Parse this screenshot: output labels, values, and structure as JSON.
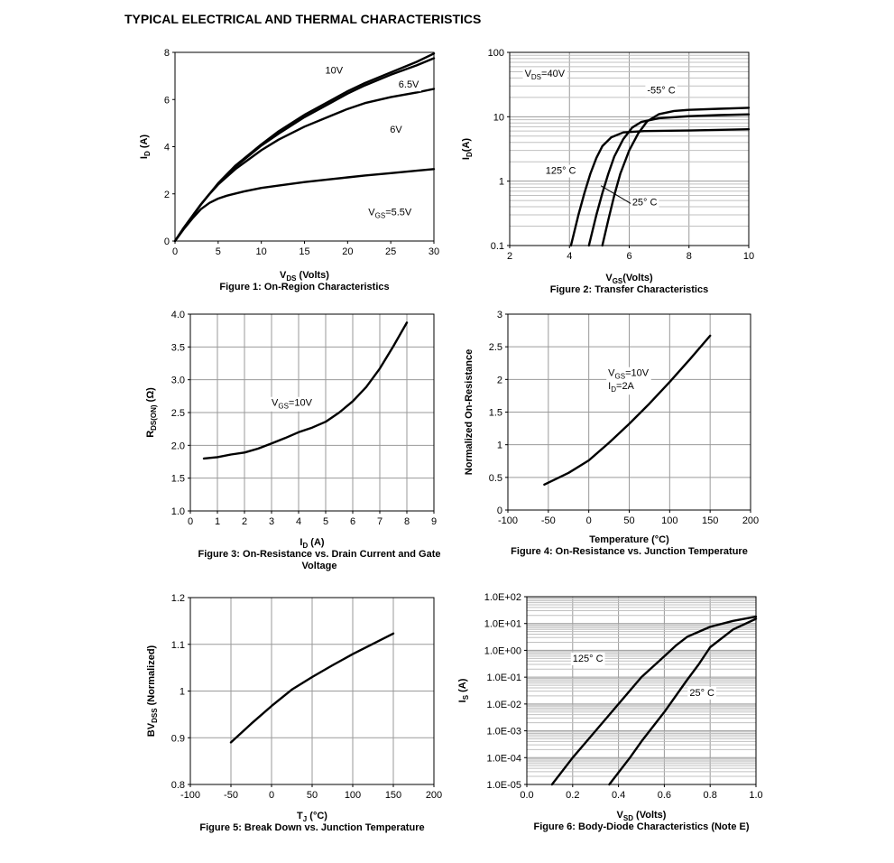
{
  "heading": "TYPICAL ELECTRICAL AND THERMAL CHARACTERISTICS",
  "chart_data": [
    {
      "id": "fig1",
      "type": "line",
      "caption": "Figure 1: On-Region Characteristics",
      "xlabel": {
        "base": "V",
        "sub": "DS",
        "rest": " (Volts)"
      },
      "ylabel": {
        "base": "I",
        "sub": "D",
        "rest": " (A)"
      },
      "xlim": [
        0,
        30
      ],
      "ylim": [
        0,
        8
      ],
      "xticks": [
        0,
        5,
        10,
        15,
        20,
        25,
        30
      ],
      "yticks": [
        0,
        2,
        4,
        6,
        8
      ],
      "grid": false,
      "series": [
        {
          "name": "10V",
          "x": [
            0,
            1,
            2,
            3,
            4,
            5,
            7,
            10,
            12,
            15,
            18,
            20,
            22,
            25,
            28,
            30
          ],
          "y": [
            0,
            0.55,
            1.05,
            1.55,
            2.0,
            2.45,
            3.2,
            4.1,
            4.65,
            5.35,
            5.95,
            6.35,
            6.7,
            7.15,
            7.6,
            7.95
          ]
        },
        {
          "name": "6.5V",
          "x": [
            0,
            1,
            2,
            3,
            4,
            5,
            7,
            10,
            12,
            15,
            18,
            20,
            22,
            25,
            28,
            30
          ],
          "y": [
            0,
            0.55,
            1.05,
            1.55,
            2.0,
            2.4,
            3.15,
            4.05,
            4.55,
            5.25,
            5.85,
            6.25,
            6.6,
            7.05,
            7.45,
            7.75
          ]
        },
        {
          "name": "6V",
          "x": [
            0,
            1,
            2,
            3,
            4,
            5,
            7,
            10,
            12,
            15,
            18,
            20,
            22,
            25,
            28,
            30
          ],
          "y": [
            0,
            0.55,
            1.05,
            1.55,
            2.0,
            2.4,
            3.05,
            3.85,
            4.3,
            4.85,
            5.3,
            5.6,
            5.85,
            6.1,
            6.3,
            6.45
          ]
        },
        {
          "name": "5.5V",
          "x": [
            0,
            1,
            2,
            3,
            4,
            5,
            6,
            8,
            10,
            12,
            15,
            18,
            20,
            22,
            25,
            28,
            30
          ],
          "y": [
            0,
            0.5,
            0.95,
            1.35,
            1.62,
            1.8,
            1.92,
            2.1,
            2.25,
            2.35,
            2.5,
            2.62,
            2.7,
            2.78,
            2.88,
            2.98,
            3.05
          ]
        }
      ],
      "annotations": [
        {
          "text": "10V",
          "x": 17.4,
          "y": 7.1
        },
        {
          "text": "6.5V",
          "x": 25.9,
          "y": 6.5
        },
        {
          "text": "6V",
          "x": 24.9,
          "y": 4.6
        },
        {
          "text": "V",
          "sub": "GS",
          "rest": "=5.5V",
          "x": 22.4,
          "y": 1.1
        }
      ]
    },
    {
      "id": "fig2",
      "type": "line",
      "caption": "Figure 2: Transfer Characteristics",
      "xlabel": {
        "base": "V",
        "sub": "GS",
        "rest": "(Volts)"
      },
      "ylabel": {
        "base": "I",
        "sub": "D",
        "rest": "(A)"
      },
      "xlim": [
        2,
        10
      ],
      "ylim": [
        0.1,
        100
      ],
      "yscale": "log",
      "xticks": [
        2,
        4,
        6,
        8,
        10
      ],
      "yticks": [
        0.1,
        1,
        10,
        100
      ],
      "ytick_labels": [
        "0.1",
        "1",
        "10",
        "100"
      ],
      "grid": true,
      "series": [
        {
          "name": "-55° C",
          "x": [
            5.1,
            5.3,
            5.5,
            5.7,
            6.0,
            6.3,
            6.6,
            7.0,
            7.5,
            8.0,
            9.0,
            10.0
          ],
          "y": [
            0.1,
            0.25,
            0.6,
            1.3,
            3.0,
            5.5,
            8.5,
            11.0,
            12.3,
            12.8,
            13.3,
            13.8
          ]
        },
        {
          "name": "25° C",
          "x": [
            4.65,
            4.9,
            5.1,
            5.3,
            5.5,
            5.8,
            6.1,
            6.4,
            7.0,
            8.0,
            9.0,
            10.0
          ],
          "y": [
            0.1,
            0.3,
            0.65,
            1.3,
            2.4,
            4.5,
            6.8,
            8.3,
            9.5,
            10.2,
            10.6,
            10.9
          ]
        },
        {
          "name": "125° C",
          "x": [
            4.05,
            4.3,
            4.5,
            4.7,
            4.9,
            5.1,
            5.4,
            5.8,
            6.5,
            8.0,
            10.0
          ],
          "y": [
            0.1,
            0.3,
            0.65,
            1.3,
            2.3,
            3.5,
            4.8,
            5.7,
            6.0,
            6.1,
            6.4
          ]
        }
      ],
      "annotations": [
        {
          "text": "V",
          "sub": "DS",
          "rest": "=40V",
          "x": 2.5,
          "y": 42
        },
        {
          "text": "-55° C",
          "x": 6.6,
          "y": 23
        },
        {
          "text": "125° C",
          "x": 3.2,
          "y": 1.3
        },
        {
          "text": "25° C",
          "x": 6.1,
          "y": 0.42
        }
      ]
    },
    {
      "id": "fig3",
      "type": "line",
      "caption": [
        "Figure 3: On-Resistance vs. Drain Current and Gate",
        "Voltage"
      ],
      "xlabel": {
        "base": "I",
        "sub": "D",
        "rest": " (A)"
      },
      "ylabel": {
        "base": "R",
        "sub": "DS(ON)",
        "rest": " (Ω)"
      },
      "xlim": [
        0,
        9
      ],
      "ylim": [
        1.0,
        4.0
      ],
      "xticks": [
        0,
        1,
        2,
        3,
        4,
        5,
        6,
        7,
        8,
        9
      ],
      "yticks": [
        1.0,
        1.5,
        2.0,
        2.5,
        3.0,
        3.5,
        4.0
      ],
      "ytick_labels": [
        "1.0",
        "1.5",
        "2.0",
        "2.5",
        "3.0",
        "3.5",
        "4.0"
      ],
      "grid": true,
      "series": [
        {
          "name": "V_GS=10V",
          "x": [
            0.5,
            1.0,
            1.5,
            2.0,
            2.5,
            3.0,
            3.5,
            4.0,
            4.5,
            5.0,
            5.5,
            6.0,
            6.5,
            7.0,
            7.5,
            8.0
          ],
          "y": [
            1.8,
            1.82,
            1.86,
            1.89,
            1.95,
            2.03,
            2.11,
            2.2,
            2.27,
            2.36,
            2.5,
            2.67,
            2.89,
            3.17,
            3.51,
            3.87
          ]
        }
      ],
      "annotations": [
        {
          "text": "V",
          "sub": "GS",
          "rest": "=10V",
          "x": 3.0,
          "y": 2.6
        }
      ]
    },
    {
      "id": "fig4",
      "type": "line",
      "caption": "Figure 4: On-Resistance vs. Junction Temperature",
      "xlabel": {
        "base": "Temperature (°C)",
        "sub": "",
        "rest": ""
      },
      "ylabel": {
        "base": "Normalized On-Resistance",
        "sub": "",
        "rest": ""
      },
      "xlim": [
        -100,
        200
      ],
      "ylim": [
        0,
        3
      ],
      "xticks": [
        -100,
        -50,
        0,
        50,
        100,
        150,
        200
      ],
      "yticks": [
        0,
        0.5,
        1,
        1.5,
        2,
        2.5,
        3
      ],
      "grid": true,
      "series": [
        {
          "name": "V_GS=10V I_D=2A",
          "x": [
            -55,
            -25,
            0,
            25,
            50,
            75,
            100,
            125,
            150
          ],
          "y": [
            0.39,
            0.57,
            0.76,
            1.03,
            1.32,
            1.63,
            1.96,
            2.31,
            2.67
          ]
        }
      ],
      "annotations": [
        {
          "text": "V",
          "sub": "GS",
          "rest": "=10V",
          "x": 24,
          "y": 2.05
        },
        {
          "text": "I",
          "sub": "D",
          "rest": "=2A",
          "x": 24,
          "y": 1.85
        }
      ]
    },
    {
      "id": "fig5",
      "type": "line",
      "caption": "Figure 5: Break Down vs. Junction Temperature",
      "xlabel": {
        "base": "T",
        "sub": "J",
        "rest": " (°C)"
      },
      "ylabel": {
        "base": "BV",
        "sub": "DSS",
        "rest": " (Normalized)"
      },
      "xlim": [
        -100,
        200
      ],
      "ylim": [
        0.8,
        1.2
      ],
      "xticks": [
        -100,
        -50,
        0,
        50,
        100,
        150,
        200
      ],
      "yticks": [
        0.8,
        0.9,
        1.0,
        1.1,
        1.2
      ],
      "ytick_labels": [
        "0.8",
        "0.9",
        "1",
        "1.1",
        "1.2"
      ],
      "grid": true,
      "series": [
        {
          "name": "BVDSS",
          "x": [
            -50,
            -25,
            0,
            25,
            50,
            75,
            100,
            125,
            150
          ],
          "y": [
            0.89,
            0.93,
            0.968,
            1.003,
            1.03,
            1.055,
            1.079,
            1.101,
            1.123
          ]
        }
      ],
      "annotations": []
    },
    {
      "id": "fig6",
      "type": "line",
      "caption": "Figure 6: Body-Diode Characteristics (Note E)",
      "xlabel": {
        "base": "V",
        "sub": "SD",
        "rest": " (Volts)"
      },
      "ylabel": {
        "base": "I",
        "sub": "S",
        "rest": " (A)"
      },
      "xlim": [
        0.0,
        1.0
      ],
      "ylim": [
        1e-05,
        100
      ],
      "yscale": "log",
      "xticks": [
        0.0,
        0.2,
        0.4,
        0.6,
        0.8,
        1.0
      ],
      "xtick_labels": [
        "0.0",
        "0.2",
        "0.4",
        "0.6",
        "0.8",
        "1.0"
      ],
      "yticks": [
        1e-05,
        0.0001,
        0.001,
        0.01,
        0.1,
        1,
        10,
        100
      ],
      "ytick_labels": [
        "1.0E-05",
        "1.0E-04",
        "1.0E-03",
        "1.0E-02",
        "1.0E-01",
        "1.0E+00",
        "1.0E+01",
        "1.0E+02"
      ],
      "grid": true,
      "series": [
        {
          "name": "125° C",
          "x": [
            0.11,
            0.2,
            0.3,
            0.4,
            0.5,
            0.6,
            0.65,
            0.7,
            0.8,
            0.9,
            1.0
          ],
          "y": [
            1e-05,
            0.0001,
            0.001,
            0.01,
            0.1,
            0.6,
            1.5,
            3.2,
            7.5,
            12.5,
            18.0
          ]
        },
        {
          "name": "25° C",
          "x": [
            0.36,
            0.45,
            0.5,
            0.6,
            0.7,
            0.75,
            0.8,
            0.9,
            1.0
          ],
          "y": [
            1e-05,
            0.0001,
            0.0004,
            0.005,
            0.08,
            0.3,
            1.3,
            6.0,
            15.0
          ]
        }
      ],
      "annotations": [
        {
          "text": "125° C",
          "x": 0.2,
          "y": 0.38
        },
        {
          "text": "25° C",
          "x": 0.71,
          "y": 0.02
        }
      ]
    }
  ]
}
